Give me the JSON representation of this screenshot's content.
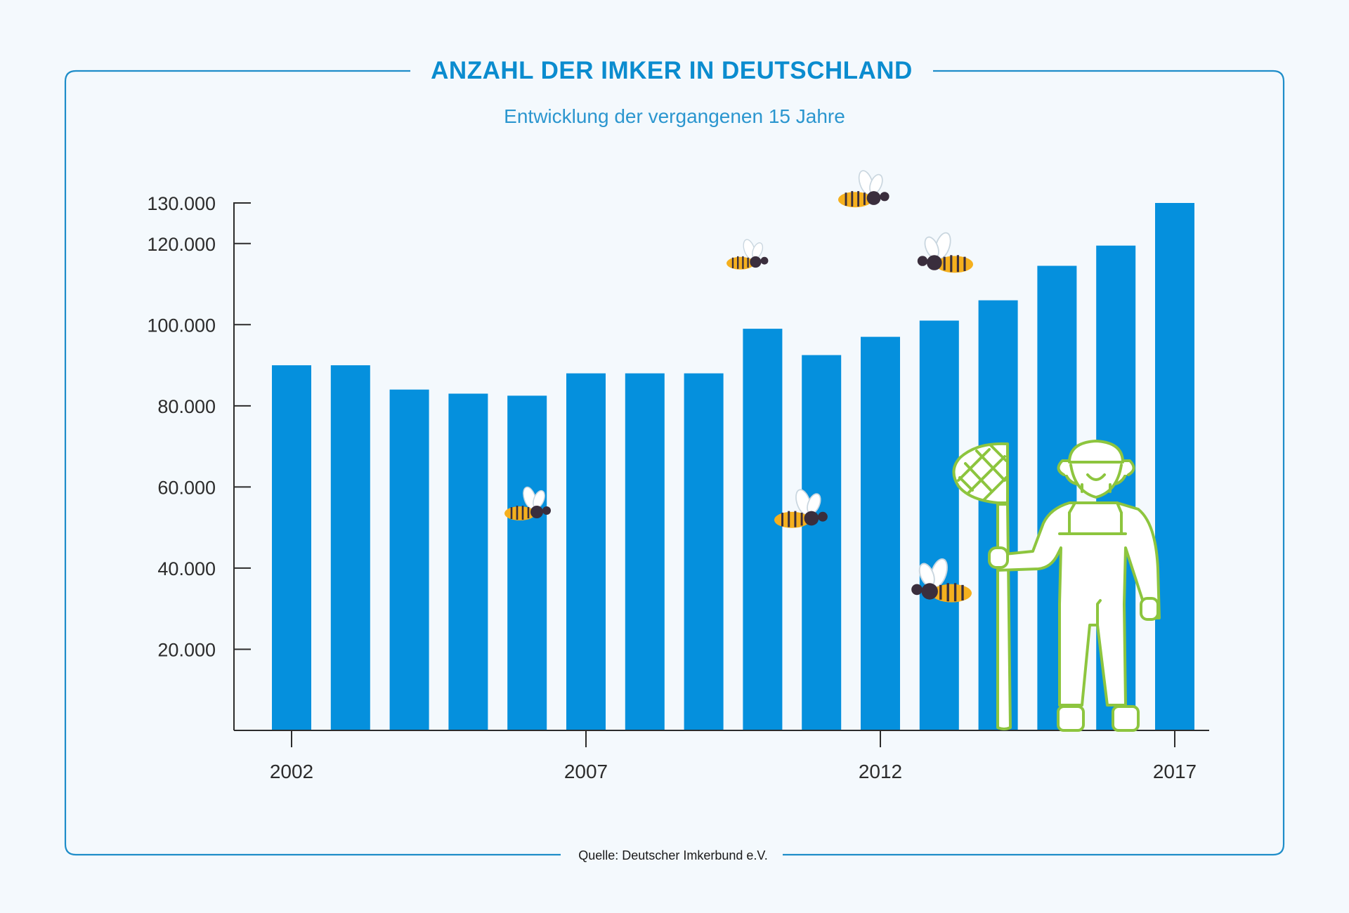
{
  "title": "ANZAHL DER IMKER IN DEUTSCHLAND",
  "subtitle": "Entwicklung der vergangenen 15 Jahre",
  "source": "Quelle: Deutscher Imkerbund e.V.",
  "colors": {
    "bar": "#0590dd",
    "frame": "#1e8dc9",
    "title": "#0b8ccf",
    "axis": "#2c2c2c",
    "beekeeper": "#8dc53e",
    "bee_body": "#f5b01e",
    "bee_head": "#3a2e3d"
  },
  "chart_data": {
    "type": "bar",
    "categories": [
      "2002",
      "2003",
      "2004",
      "2005",
      "2006",
      "2007",
      "2008",
      "2009",
      "2010",
      "2011",
      "2012",
      "2013",
      "2014",
      "2015",
      "2016",
      "2017"
    ],
    "values": [
      90000,
      90000,
      84000,
      83000,
      82500,
      88000,
      88000,
      88000,
      99000,
      92500,
      97000,
      101000,
      106000,
      114500,
      119500,
      130000
    ],
    "title": "ANZAHL DER IMKER IN DEUTSCHLAND",
    "subtitle": "Entwicklung der vergangenen 15 Jahre",
    "y_ticks": [
      {
        "value": 20000,
        "label": "20.000"
      },
      {
        "value": 40000,
        "label": "40.000"
      },
      {
        "value": 60000,
        "label": "60.000"
      },
      {
        "value": 80000,
        "label": "80.000"
      },
      {
        "value": 100000,
        "label": "100.000"
      },
      {
        "value": 120000,
        "label": "120.000"
      },
      {
        "value": 130000,
        "label": "130.000"
      }
    ],
    "x_tick_labels": [
      "2002",
      "2007",
      "2012",
      "2017"
    ],
    "ylim": [
      0,
      130000
    ],
    "grid": false,
    "legend": "none"
  },
  "illustrations": [
    "bee-icon",
    "beekeeper-icon"
  ]
}
